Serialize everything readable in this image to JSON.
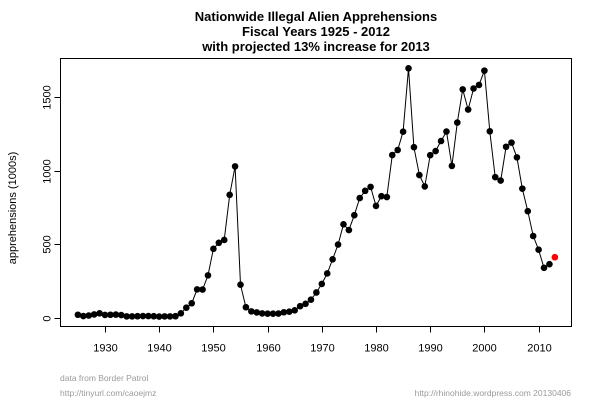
{
  "chart_data": {
    "type": "line",
    "title": [
      "Nationwide Illegal Alien Apprehensions",
      "Fiscal Years 1925 - 2012",
      "with projected 13% increase for 2013"
    ],
    "xlabel": "",
    "ylabel": "apprehensions (1000s)",
    "xlim": [
      1922,
      2016
    ],
    "ylim": [
      -50,
      1760
    ],
    "x_ticks": [
      1930,
      1940,
      1950,
      1960,
      1970,
      1980,
      1990,
      2000,
      2010
    ],
    "y_ticks": [
      0,
      500,
      1000,
      1500
    ],
    "grid": false,
    "series": [
      {
        "name": "apprehensions",
        "color": "#000000",
        "x": [
          1925,
          1926,
          1927,
          1928,
          1929,
          1930,
          1931,
          1932,
          1933,
          1934,
          1935,
          1936,
          1937,
          1938,
          1939,
          1940,
          1941,
          1942,
          1943,
          1944,
          1945,
          1946,
          1947,
          1948,
          1949,
          1950,
          1951,
          1952,
          1953,
          1954,
          1955,
          1956,
          1957,
          1958,
          1959,
          1960,
          1961,
          1962,
          1963,
          1964,
          1965,
          1966,
          1967,
          1968,
          1969,
          1970,
          1971,
          1972,
          1973,
          1974,
          1975,
          1976,
          1977,
          1978,
          1979,
          1980,
          1981,
          1982,
          1983,
          1984,
          1985,
          1986,
          1987,
          1988,
          1989,
          1990,
          1991,
          1992,
          1993,
          1994,
          1995,
          1996,
          1997,
          1998,
          1999,
          2000,
          2001,
          2002,
          2003,
          2004,
          2005,
          2006,
          2007,
          2008,
          2009,
          2010,
          2011,
          2012
        ],
        "y": [
          22,
          13,
          17,
          24,
          32,
          21,
          22,
          23,
          20,
          11,
          11,
          12,
          13,
          13,
          12,
          10,
          11,
          11,
          12,
          32,
          70,
          100,
          194,
          193,
          289,
          469,
          510,
          529,
          835,
          1028,
          226,
          73,
          45,
          38,
          31,
          29,
          29,
          30,
          39,
          43,
          52,
          80,
          96,
          124,
          173,
          231,
          302,
          398,
          498,
          635,
          596,
          697,
          813,
          862,
          889,
          760,
          826,
          820,
          1105,
          1139,
          1263,
          1693,
          1158,
          969,
          892,
          1104,
          1132,
          1200,
          1264,
          1031,
          1325,
          1550,
          1413,
          1556,
          1580,
          1677,
          1266,
          955,
          932,
          1161,
          1189,
          1089,
          877,
          724,
          556,
          463,
          340,
          365
        ]
      },
      {
        "name": "projected 2013",
        "color": "#ff0000",
        "x": [
          2013
        ],
        "y": [
          412
        ]
      }
    ]
  },
  "footer": {
    "source_line1": "data from Border Patrol",
    "source_line2": "http://tinyurl.com/caoejmz",
    "credit": "http://rhinohide.wordpress.com 20130406"
  }
}
